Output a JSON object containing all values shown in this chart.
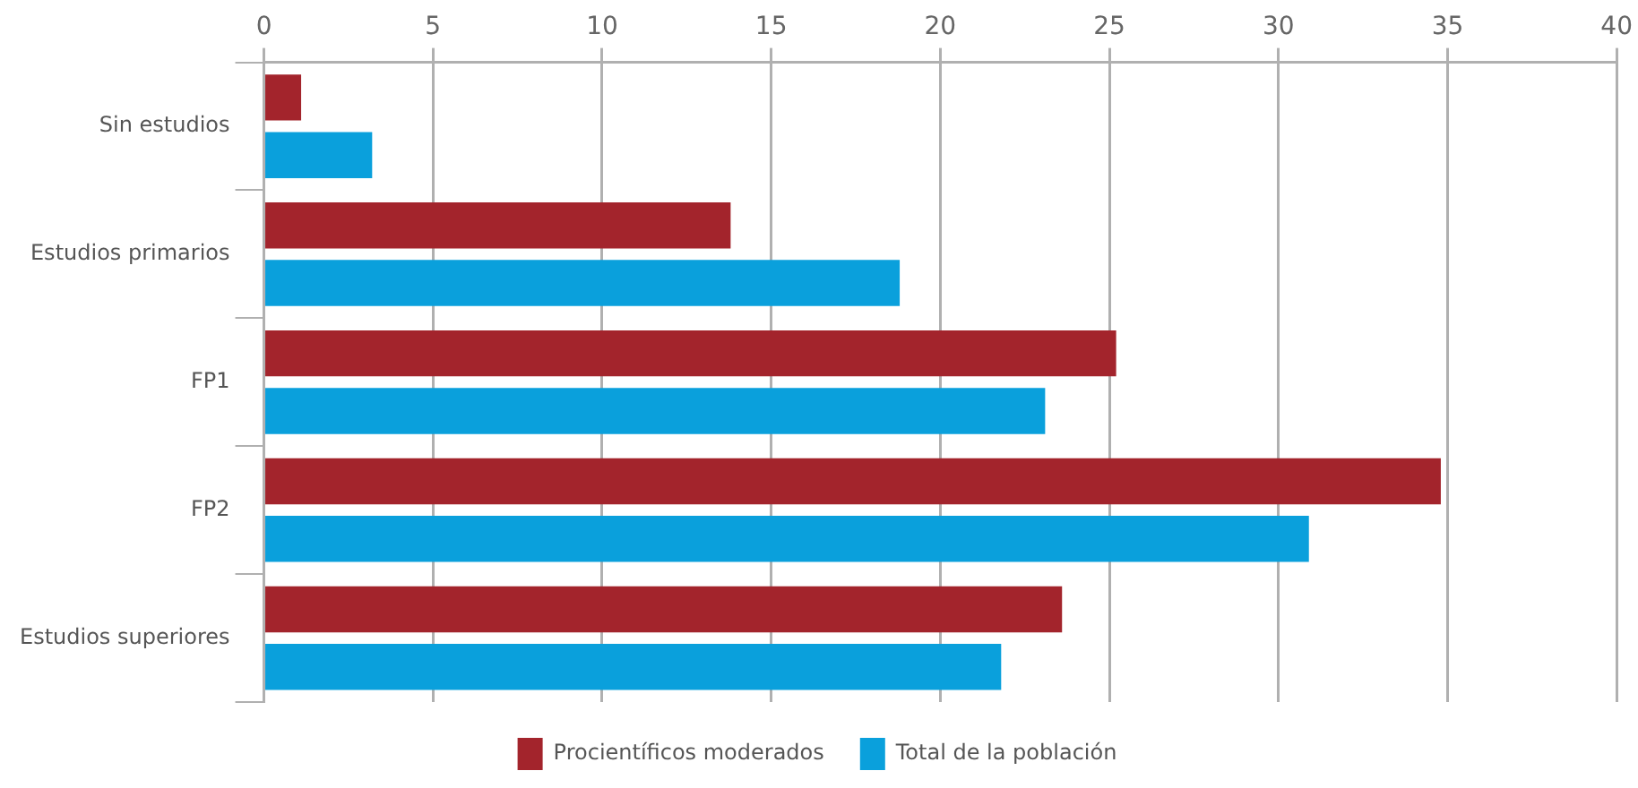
{
  "chart_data": {
    "type": "bar",
    "orientation": "horizontal",
    "categories": [
      "Sin estudios",
      "Estudios primarios",
      "FP1",
      "FP2",
      "Estudios superiores"
    ],
    "series": [
      {
        "name": "Procientíficos moderados",
        "color": "#a3242c",
        "values": [
          1.1,
          13.8,
          25.2,
          34.8,
          23.6
        ]
      },
      {
        "name": "Total de la población",
        "color": "#0aa0dc",
        "values": [
          3.2,
          18.8,
          23.1,
          30.9,
          21.8
        ]
      }
    ],
    "xlim": [
      0,
      40
    ],
    "xticks": [
      0,
      5,
      10,
      15,
      20,
      25,
      30,
      35,
      40
    ],
    "grid": "x",
    "legend": "bottom"
  }
}
